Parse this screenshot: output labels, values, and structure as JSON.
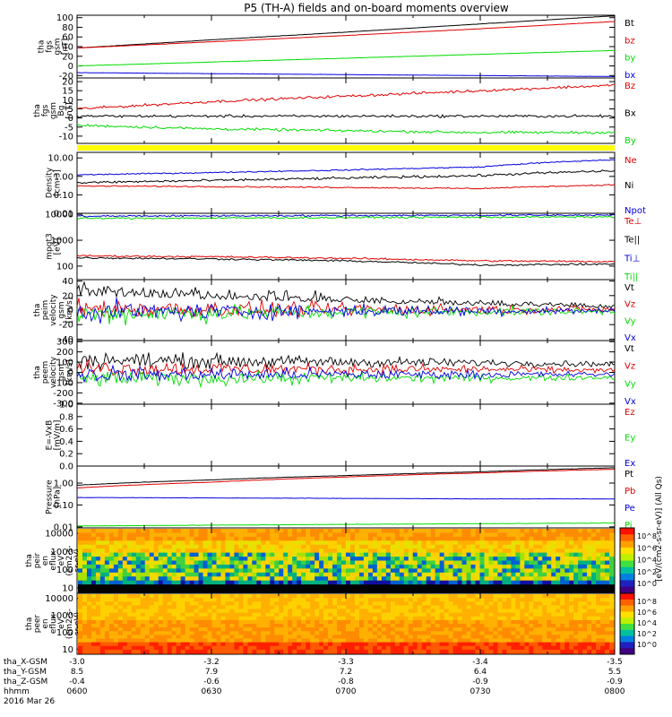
{
  "title": "P5 (TH-A) fields and on-board moments overview",
  "colors": {
    "black": "#000000",
    "red": "#e00000",
    "green": "#00dd00",
    "blue": "#0000dd",
    "flag_yellow": "#ffff00"
  },
  "time": {
    "ticks": [
      "0600",
      "0630",
      "0700",
      "0730",
      "0800"
    ],
    "row_labels": [
      "tha_X-GSM",
      "tha_Y-GSM",
      "tha_Z-GSM",
      "hhmm",
      "2016 Mar 26"
    ],
    "x_gsm": [
      "-3.0",
      "-3.2",
      "-3.3",
      "-3.4",
      "-3.5"
    ],
    "y_gsm": [
      "8.5",
      "7.9",
      "7.2",
      "6.4",
      "5.5"
    ],
    "z_gsm": [
      "-0.4",
      "-0.6",
      "-0.8",
      "-0.9",
      "-0.9"
    ]
  },
  "colorbar_label": "[eV/(cm2-s-sr-eV)] (All Qs)",
  "chart_data": [
    {
      "type": "line",
      "ylabel": [
        "tha",
        "fgs",
        "gsm",
        "[nT]"
      ],
      "yticks": [
        "100",
        "80",
        "60",
        "40",
        "20",
        "0",
        "-20"
      ],
      "ylim": [
        -25,
        105
      ],
      "series": [
        {
          "name": "Bt",
          "color": "#000000",
          "values": [
            37,
            54,
            70,
            87,
            104
          ]
        },
        {
          "name": "bz",
          "color": "#e00000",
          "values": [
            37,
            50,
            63,
            77,
            92
          ]
        },
        {
          "name": "by",
          "color": "#00dd00",
          "values": [
            0,
            8,
            16,
            24,
            32
          ]
        },
        {
          "name": "bx",
          "color": "#0000dd",
          "values": [
            -14,
            -16,
            -18,
            -20,
            -22
          ]
        }
      ]
    },
    {
      "type": "line",
      "ylabel": [
        "tha",
        "fgs",
        "gsm",
        "Bg",
        "[nT]"
      ],
      "yticks": [
        "20",
        "15",
        "10",
        "5",
        "0",
        "-5",
        "-10"
      ],
      "ylim": [
        -14,
        22
      ],
      "series": [
        {
          "name": "Bz",
          "color": "#e00000",
          "values": [
            5,
            9,
            12,
            15,
            18
          ]
        },
        {
          "name": "Bx",
          "color": "#000000",
          "values": [
            1,
            1,
            1,
            1,
            1
          ]
        },
        {
          "name": "By",
          "color": "#00dd00",
          "values": [
            -4,
            -6,
            -7,
            -8,
            -8
          ]
        }
      ]
    },
    {
      "type": "line",
      "ylabel": [
        "Density",
        "[cm-3]"
      ],
      "yticks": [
        "10.00",
        "1.00",
        "0.10",
        "0.01"
      ],
      "log_scale": true,
      "ylim": [
        0.01,
        20
      ],
      "series": [
        {
          "name": "Ne",
          "color": "#e00000",
          "values": [
            0.3,
            0.28,
            0.25,
            0.22,
            0.35
          ]
        },
        {
          "name": "Ni",
          "color": "#000000",
          "values": [
            0.45,
            0.6,
            0.8,
            1.1,
            2.0
          ]
        },
        {
          "name": "Npot",
          "color": "#0000dd",
          "values": [
            1.2,
            1.6,
            2.2,
            3.2,
            8.0
          ]
        }
      ]
    },
    {
      "type": "line",
      "ylabel": [
        "mpgt3",
        "[eV]"
      ],
      "yticks": [
        "10000",
        "1000",
        "100"
      ],
      "log_scale": true,
      "ylim": [
        30,
        11000
      ],
      "series": [
        {
          "name": "Te⊥",
          "color": "#e00000",
          "values": [
            250,
            230,
            200,
            160,
            150
          ]
        },
        {
          "name": "Te||",
          "color": "#000000",
          "values": [
            210,
            190,
            160,
            110,
            120
          ]
        },
        {
          "name": "Ti⊥",
          "color": "#0000dd",
          "values": [
            8500,
            8800,
            9000,
            9200,
            9400
          ]
        },
        {
          "name": "Ti||",
          "color": "#00dd00",
          "values": [
            7000,
            7200,
            7500,
            7800,
            8000
          ]
        }
      ]
    },
    {
      "type": "line",
      "ylabel": [
        "tha",
        "peim",
        "velocity",
        "gsm",
        "[km/s]"
      ],
      "yticks": [
        "40",
        "20",
        "0",
        "-20",
        "-40"
      ],
      "ylim": [
        -42,
        42
      ],
      "series": [
        {
          "name": "Vt",
          "color": "#000000",
          "values": [
            20,
            15,
            10,
            6,
            3
          ]
        },
        {
          "name": "Vz",
          "color": "#e00000",
          "values": [
            2,
            1,
            1,
            1,
            1
          ]
        },
        {
          "name": "Vy",
          "color": "#00dd00",
          "values": [
            -5,
            -4,
            -3,
            -2,
            -2
          ]
        },
        {
          "name": "Vx",
          "color": "#0000dd",
          "values": [
            -2,
            -2,
            -1,
            -1,
            -1
          ]
        }
      ]
    },
    {
      "type": "line",
      "ylabel": [
        "tha",
        "peem",
        "velocity",
        "gsm",
        "[km/s]"
      ],
      "yticks": [
        "300",
        "200",
        "100",
        "0",
        "-100",
        "-200",
        "-300"
      ],
      "ylim": [
        -310,
        310
      ],
      "series": [
        {
          "name": "Vt",
          "color": "#000000",
          "values": [
            120,
            110,
            100,
            95,
            80
          ]
        },
        {
          "name": "Vz",
          "color": "#e00000",
          "values": [
            40,
            35,
            30,
            30,
            20
          ]
        },
        {
          "name": "Vy",
          "color": "#00dd00",
          "values": [
            -60,
            -60,
            -55,
            -55,
            -50
          ]
        },
        {
          "name": "Vx",
          "color": "#0000dd",
          "values": [
            -20,
            -20,
            -20,
            -20,
            -20
          ]
        }
      ]
    },
    {
      "type": "line",
      "ylabel": [
        "E=-VxB",
        "[mV/m]"
      ],
      "yticks": [
        "1.0",
        "0.8",
        "0.6",
        "0.4",
        "0.2",
        "0.0"
      ],
      "ylim": [
        0,
        1
      ],
      "series": [
        {
          "name": "Ez",
          "color": "#e00000",
          "values": []
        },
        {
          "name": "Ey",
          "color": "#00dd00",
          "values": []
        },
        {
          "name": "Ex",
          "color": "#0000dd",
          "values": []
        }
      ]
    },
    {
      "type": "line",
      "ylabel": [
        "Pressure",
        "[nPa]"
      ],
      "yticks": [
        "1.00",
        "0.10",
        "0.01"
      ],
      "log_scale": true,
      "ylim": [
        0.009,
        6
      ],
      "series": [
        {
          "name": "Pt",
          "color": "#000000",
          "values": [
            0.8,
            1.4,
            2.2,
            3.3,
            5.0
          ]
        },
        {
          "name": "Pb",
          "color": "#e00000",
          "values": [
            0.6,
            1.1,
            1.9,
            2.9,
            4.3
          ]
        },
        {
          "name": "Pe",
          "color": "#0000dd",
          "values": [
            0.22,
            0.21,
            0.2,
            0.19,
            0.19
          ]
        },
        {
          "name": "Pi",
          "color": "#00dd00",
          "values": [
            0.011,
            0.012,
            0.013,
            0.014,
            0.015
          ]
        }
      ]
    },
    {
      "type": "heatmap",
      "ylabel": [
        "tha",
        "peir",
        "en",
        "eflux",
        "eV",
        "(cm2-s-",
        "sr-eV)"
      ],
      "yticks": [
        "10000",
        "1000",
        "100",
        "10"
      ],
      "log_scale": true,
      "colorbar_ticks": [
        "10^8",
        "10^6",
        "10^4",
        "10^2",
        "10^0"
      ]
    },
    {
      "type": "heatmap",
      "ylabel": [
        "tha",
        "peer",
        "en",
        "eflux",
        "eV",
        "(cm2-s-",
        "sr-eV)"
      ],
      "yticks": [
        "10000",
        "1000",
        "100",
        "10"
      ],
      "log_scale": true,
      "colorbar_ticks": [
        "10^8",
        "10^6",
        "10^4",
        "10^2",
        "10^0"
      ]
    }
  ]
}
